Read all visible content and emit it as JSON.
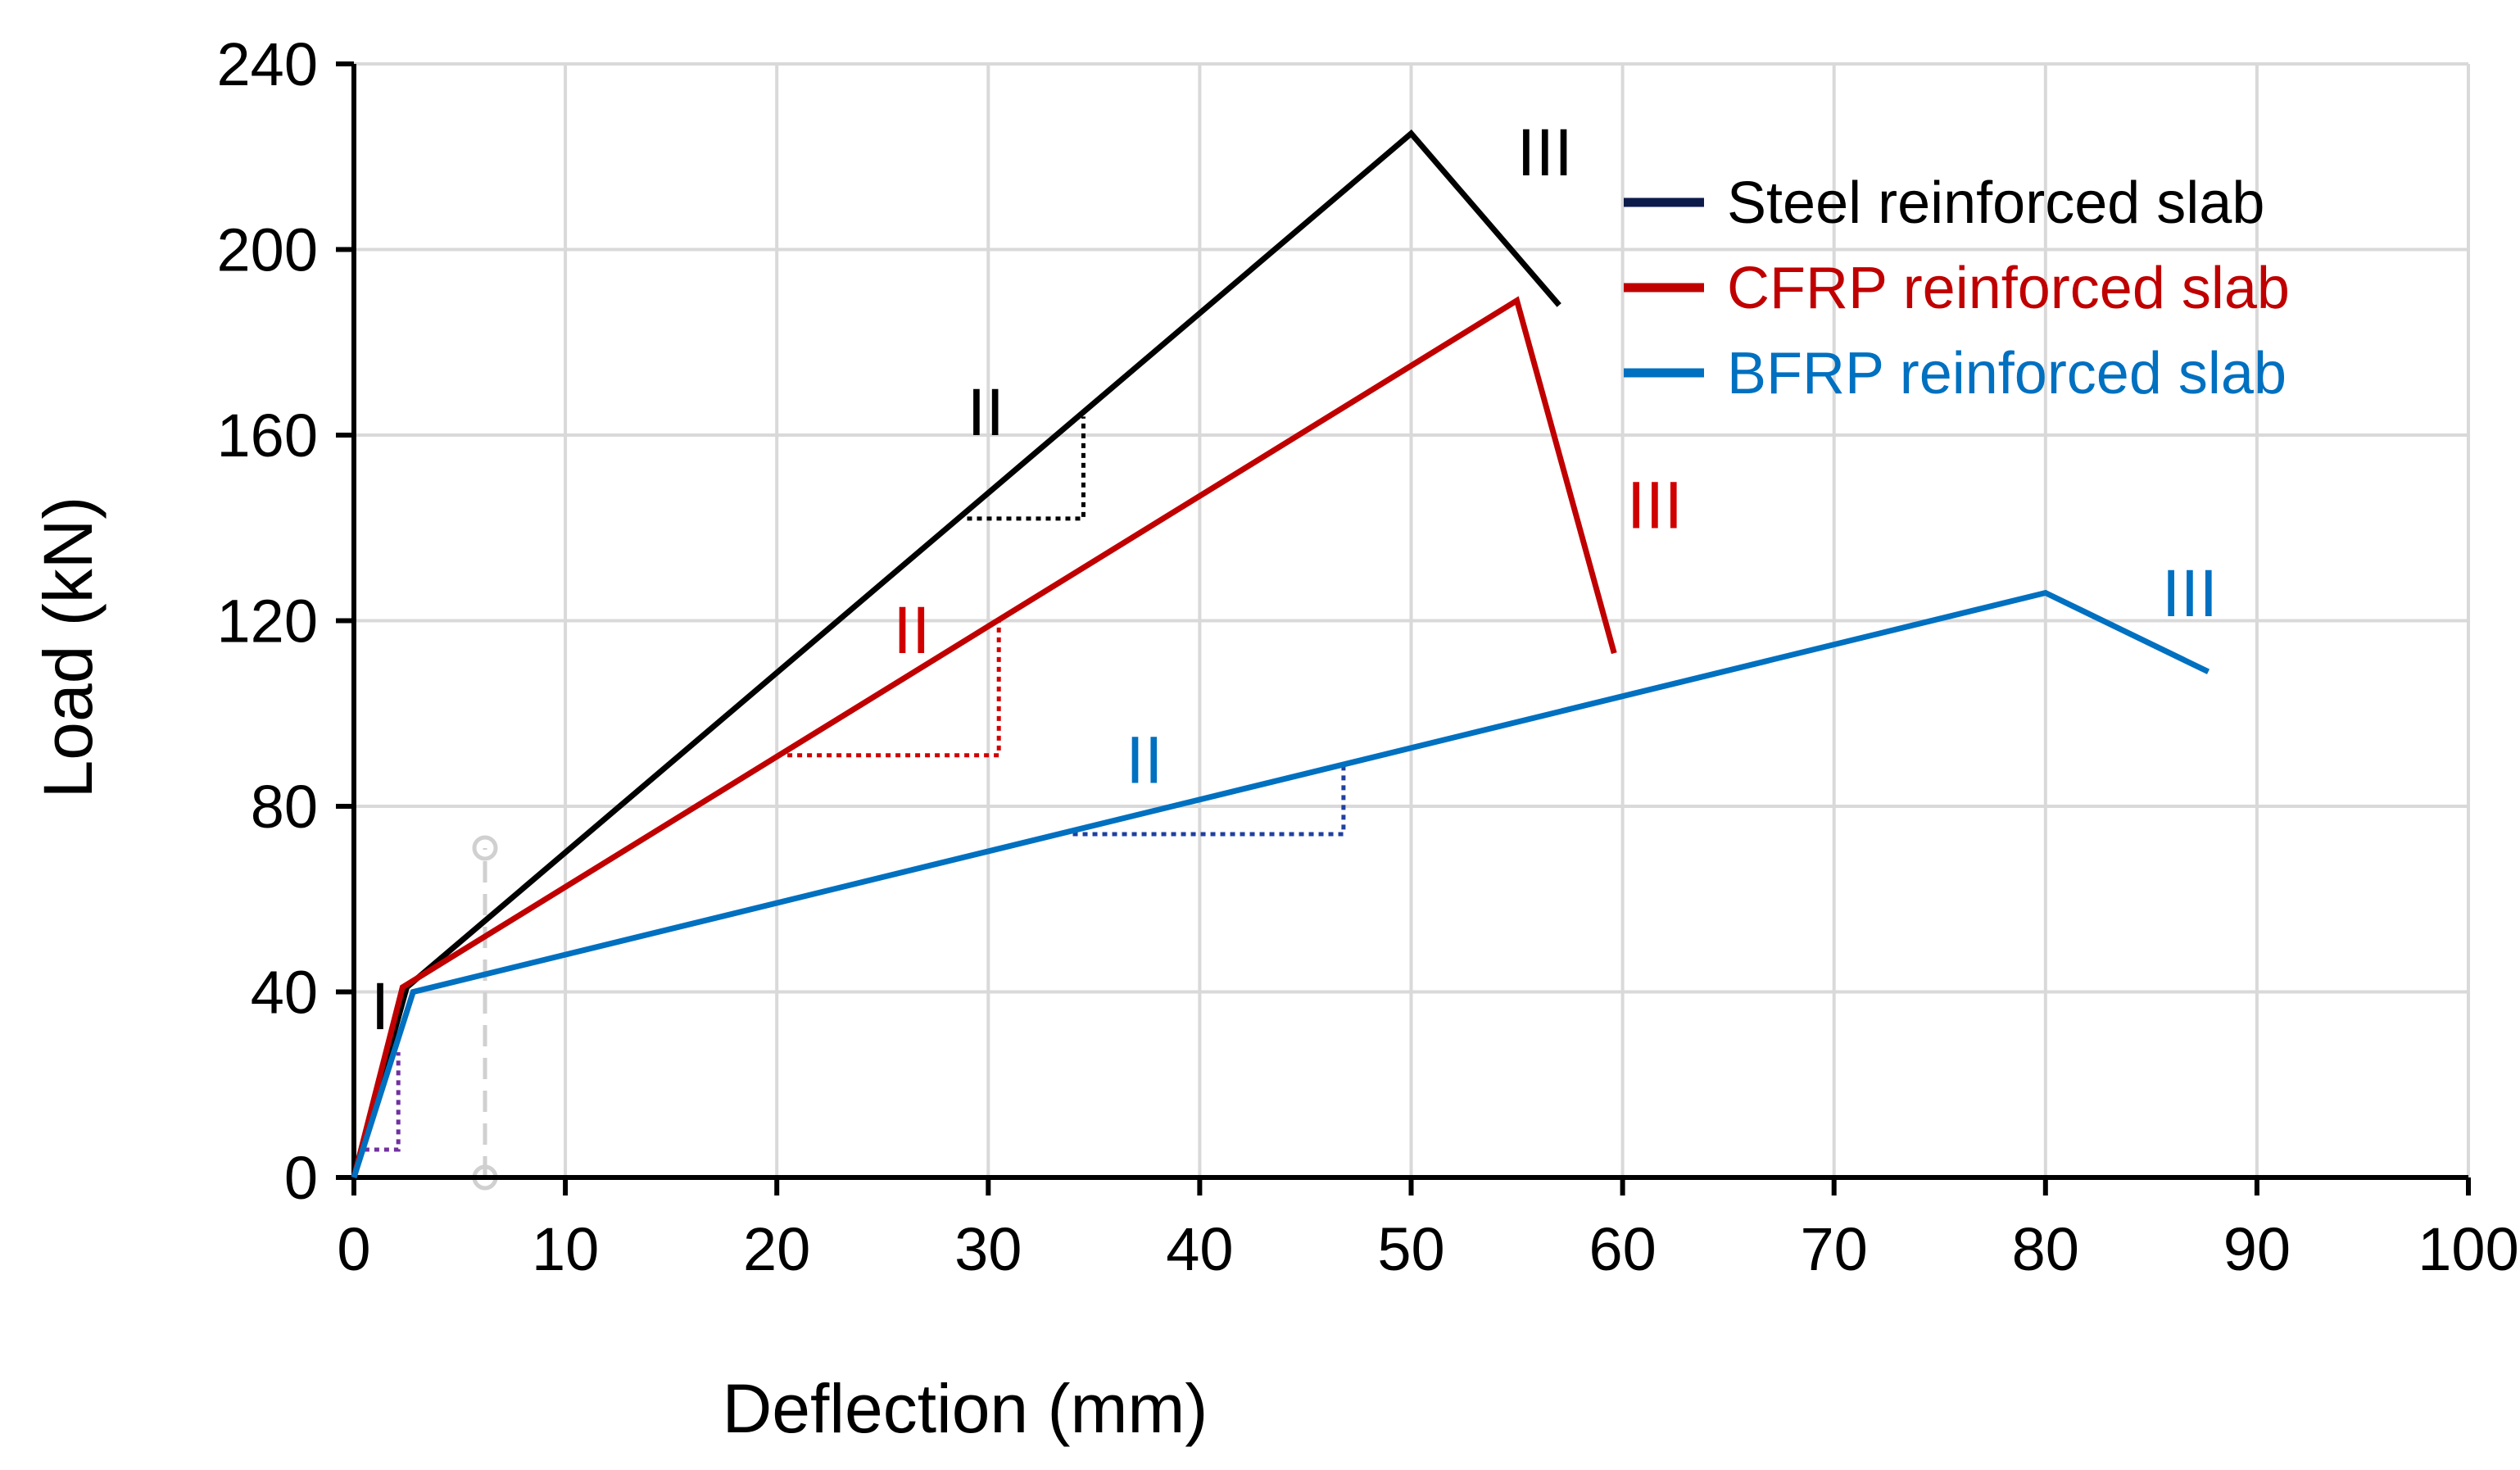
{
  "chart_data": {
    "type": "line",
    "xlabel": "Deflection (mm)",
    "ylabel": "Load (kN)",
    "xlim": [
      0,
      100
    ],
    "ylim": [
      0,
      240
    ],
    "xticks": [
      0,
      10,
      20,
      30,
      40,
      50,
      60,
      70,
      80,
      90,
      100
    ],
    "yticks": [
      0,
      40,
      80,
      120,
      160,
      200,
      240
    ],
    "xtick_labels": [
      "0",
      "10",
      "20",
      "30",
      "40",
      "50",
      "60",
      "70",
      "80",
      "90",
      "100"
    ],
    "ytick_labels": [
      "0",
      "40",
      "80",
      "120",
      "160",
      "200",
      "240"
    ],
    "grid": true,
    "legend_position": "top-right",
    "series": [
      {
        "name": "Steel reinforced slab",
        "color": "#000000",
        "legend_color": "#0d1b4a",
        "points": [
          [
            0,
            0
          ],
          [
            2.5,
            41
          ],
          [
            50,
            225
          ],
          [
            57,
            188
          ]
        ]
      },
      {
        "name": "CFRP reinforced slab",
        "color": "#c00000",
        "legend_color": "#c00000",
        "points": [
          [
            0,
            0
          ],
          [
            2.3,
            41
          ],
          [
            55,
            189
          ],
          [
            59.6,
            113
          ]
        ]
      },
      {
        "name": "BFRP reinforced slab",
        "color": "#0070c0",
        "legend_color": "#0070c0",
        "points": [
          [
            0,
            0
          ],
          [
            2.8,
            40
          ],
          [
            80,
            126
          ],
          [
            87.7,
            109
          ]
        ]
      }
    ],
    "annotations": [
      {
        "text": "I",
        "x": 0.8,
        "y": 32,
        "color": "#000000"
      },
      {
        "text": "II",
        "x": 29,
        "y": 160,
        "color": "#000000"
      },
      {
        "text": "III",
        "x": 55,
        "y": 216,
        "color": "#000000"
      },
      {
        "text": "II",
        "x": 25.5,
        "y": 113,
        "color": "#d00000"
      },
      {
        "text": "III",
        "x": 60.2,
        "y": 140,
        "color": "#d00000"
      },
      {
        "text": "II",
        "x": 36.5,
        "y": 85,
        "color": "#0070c0"
      },
      {
        "text": "III",
        "x": 85.5,
        "y": 121,
        "color": "#0070c0"
      }
    ],
    "slope_markers": [
      {
        "color": "#000000",
        "x1": 29,
        "x2": 34.5,
        "y1": 142,
        "y2": 164
      },
      {
        "color": "#d00000",
        "x1": 20.5,
        "x2": 30.5,
        "y1": 91,
        "y2": 120
      },
      {
        "color": "#2040a0",
        "x1": 34,
        "x2": 46.8,
        "y1": 74,
        "y2": 89
      },
      {
        "color": "#7030a0",
        "x1": 0.5,
        "x2": 2.1,
        "y1": 6,
        "y2": 27
      }
    ],
    "dashed_marker": {
      "x": 6.2,
      "y1": 0,
      "y2": 71,
      "color": "#d0d0d0"
    }
  }
}
